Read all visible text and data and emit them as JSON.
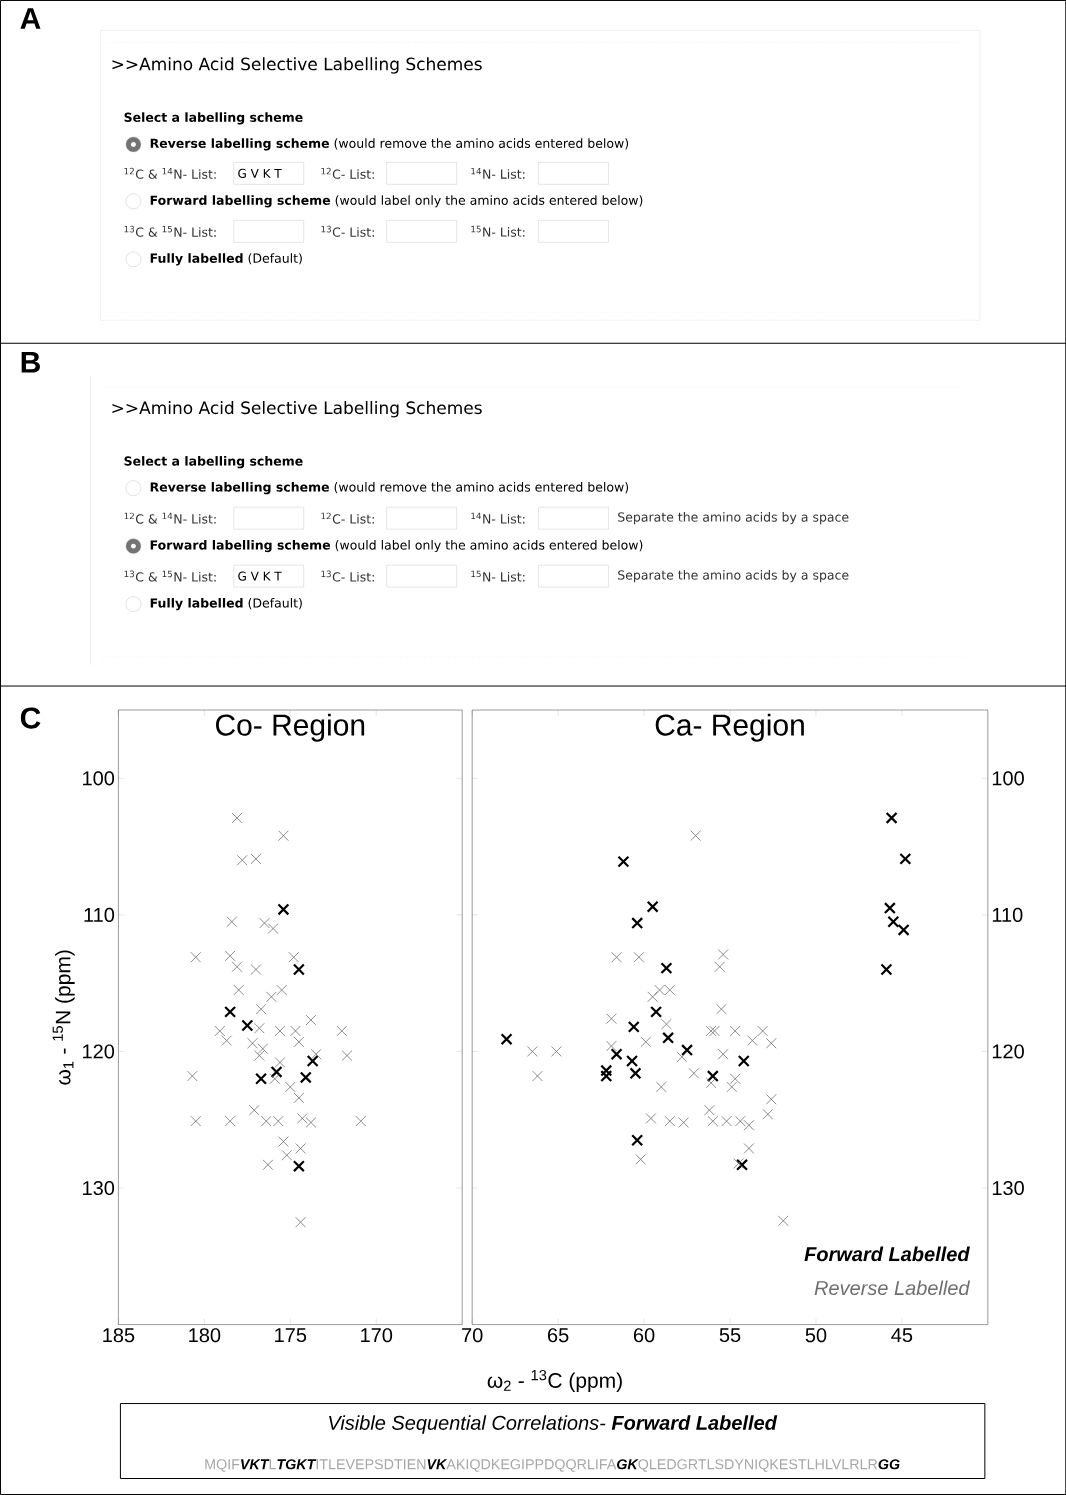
{
  "chart_data": [
    {
      "type": "other",
      "title": ">>Amino Acid Selective Labelling Schemes",
      "annotations": [
        "A",
        "Select a labelling scheme",
        "**Reverse labelling scheme** (would remove the amino acids entered below)",
        "$^{12}$C & $^{14}$N- List:",
        "G V K T",
        "$^{12}$C- List:",
        "$^{14}$N- List:",
        "**Forward labelling scheme** (would label only the amino acids entered below)",
        "$^{13}$C & $^{15}$N- List:",
        "$^{13}$C- List:",
        "$^{15}$N- List:",
        "**Fully labelled** (Default)"
      ]
    },
    {
      "type": "other",
      "title": ">>Amino Acid Selective Labelling Schemes",
      "annotations": [
        "B",
        "Select a labelling scheme",
        "**Reverse labelling scheme** (would remove the amino acids entered below)",
        "$^{12}$C & $^{14}$N- List:",
        "$^{12}$C- List:",
        "$^{14}$N- List:",
        "Separate the amino acids by a space",
        "**Forward labelling scheme** (would label only the amino acids entered below)",
        "$^{13}$C & $^{15}$N- List:",
        "G V K T",
        "$^{13}$C- List:",
        "$^{15}$N- List:",
        "Separate the amino acids by a space",
        "**Fully labelled** (Default)"
      ]
    },
    {
      "type": "scatter",
      "title": "Co- Region",
      "xlabel": "ω$_{2}$ - $^{13}$C  (ppm)",
      "ylabel": "ω$_{1}$ - $^{15}$N (ppm)",
      "annotations": [
        "C"
      ],
      "xlim": [
        185,
        165
      ],
      "ylim": [
        140,
        95
      ],
      "xticks": [
        185,
        180,
        175,
        170
      ],
      "yticks": [
        100,
        110,
        120,
        130
      ],
      "marker": "cross",
      "series": [
        {
          "color": "#000000",
          "x": [
            175.4,
            174.5,
            178.5,
            177.5,
            176.7,
            175.8,
            174.1,
            173.7,
            174.5
          ],
          "values": [
            109.6,
            114.0,
            117.1,
            118.1,
            122.0,
            121.5,
            121.9,
            120.7,
            128.4
          ]
        },
        {
          "color": "#6e6e6e",
          "x": [
            178.1,
            175.4,
            177.8,
            177.0,
            178.4,
            176.5,
            176.0,
            180.5,
            178.5,
            178.1,
            177.0,
            174.8,
            178.0,
            175.5,
            176.1,
            176.7,
            173.8,
            172.0,
            179.1,
            178.7,
            176.8,
            175.6,
            174.7,
            174.5,
            177.2,
            176.6,
            176.8,
            175.6,
            173.5,
            171.7,
            180.7,
            175.9,
            175.0,
            174.5,
            177.1,
            180.5,
            178.5,
            176.4,
            175.7,
            174.3,
            173.8,
            170.9,
            175.4,
            175.2,
            174.4,
            176.3,
            174.4
          ],
          "values": [
            102.9,
            104.2,
            106.0,
            105.9,
            110.5,
            110.6,
            111.0,
            113.1,
            113.0,
            113.8,
            114.0,
            113.1,
            115.5,
            115.5,
            116.0,
            116.9,
            117.7,
            118.5,
            118.5,
            119.2,
            118.3,
            118.5,
            118.5,
            119.3,
            119.4,
            119.8,
            120.3,
            120.8,
            120.2,
            120.3,
            121.8,
            122.0,
            122.6,
            123.4,
            124.3,
            125.1,
            125.1,
            125.1,
            125.1,
            124.9,
            125.2,
            125.1,
            126.6,
            127.6,
            127.1,
            128.3,
            132.5
          ]
        }
      ]
    },
    {
      "type": "scatter",
      "title": "Ca- Region",
      "xlim": [
        70,
        40
      ],
      "ylim": [
        140,
        95
      ],
      "xticks": [
        70,
        65,
        60,
        55,
        50,
        45
      ],
      "yticks": [
        100,
        110,
        120,
        130
      ],
      "marker": "cross",
      "legend": "bottom right",
      "series": [
        {
          "name": "Forward Labelled",
          "color": "#000000",
          "x": [
            45.6,
            44.8,
            61.2,
            59.5,
            60.4,
            45.7,
            45.5,
            44.9,
            58.7,
            45.9,
            59.3,
            60.6,
            68.0,
            58.6,
            57.5,
            61.6,
            60.7,
            62.2,
            62.2,
            60.5,
            56.0,
            54.2,
            60.4,
            54.3
          ],
          "values": [
            102.9,
            105.9,
            106.1,
            109.4,
            110.6,
            109.5,
            110.5,
            111.1,
            113.9,
            114.0,
            117.1,
            118.2,
            119.1,
            119.0,
            119.9,
            120.2,
            120.7,
            121.4,
            121.8,
            121.6,
            121.8,
            120.7,
            126.5,
            128.3
          ]
        },
        {
          "name": "Reverse Labelled",
          "color": "#6e6e6e",
          "x": [
            57.0,
            61.6,
            60.3,
            55.4,
            55.6,
            59.5,
            59.1,
            58.5,
            55.5,
            61.9,
            58.7,
            56.1,
            55.9,
            54.7,
            53.1,
            53.7,
            52.6,
            59.9,
            66.5,
            65.1,
            61.9,
            57.8,
            55.4,
            66.2,
            57.1,
            56.1,
            54.7,
            54.9,
            59.0,
            59.6,
            58.5,
            57.7,
            56.2,
            56.0,
            55.2,
            54.4,
            53.9,
            52.6,
            52.8,
            60.2,
            53.9,
            54.5,
            51.9
          ],
          "values": [
            104.2,
            113.1,
            113.1,
            112.9,
            113.8,
            116.0,
            115.5,
            115.5,
            116.9,
            117.6,
            118.0,
            118.5,
            118.5,
            118.5,
            118.5,
            119.2,
            119.4,
            119.3,
            120.0,
            120.0,
            119.6,
            120.4,
            120.2,
            121.8,
            121.6,
            122.3,
            122.0,
            122.6,
            122.6,
            124.9,
            125.1,
            125.2,
            124.3,
            125.1,
            125.1,
            125.1,
            125.4,
            123.5,
            124.6,
            127.9,
            127.1,
            128.2,
            132.4
          ]
        }
      ]
    },
    {
      "type": "other",
      "title": "Visible Sequential Correlations- **Forward Labelled**",
      "annotations": [
        "MQIF**VKT**L**TGKT**ITLEVEPSDTIEN**VK**AKIQDKEGIPPDQQRLIFA**GK**QLEDGRTLSDYNIQKESTLHLVLRLR**GG**"
      ]
    }
  ]
}
